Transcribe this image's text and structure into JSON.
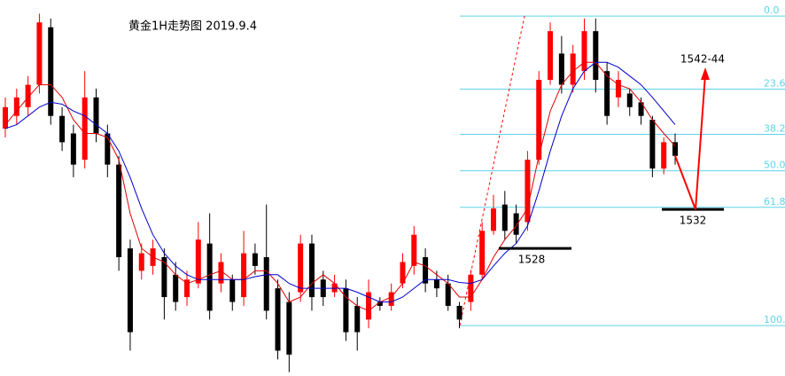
{
  "chart_data": {
    "type": "candlestick",
    "title": "黄金1H走势图 2019.9.4",
    "ylim": [
      1514.9,
      1553.5
    ],
    "open": [
      1540.3,
      1541.6,
      1542.5,
      1544.8,
      1550.7,
      1541.6,
      1539.8,
      1537.1,
      1543.5,
      1539.8,
      1536.6,
      1528.0,
      1525.7,
      1526.2,
      1527.1,
      1525.3,
      1523.0,
      1524.4,
      1528.5,
      1524.4,
      1524.8,
      1523.0,
      1527.5,
      1527.1,
      1523.9,
      1522.5,
      1523.5,
      1528.5,
      1524.8,
      1523.5,
      1523.9,
      1522.1,
      1520.7,
      1522.5,
      1522.1,
      1524.4,
      1526.2,
      1527.1,
      1524.8,
      1524.4,
      1522.1,
      1522.5,
      1525.3,
      1529.8,
      1532.5,
      1531.6,
      1530.7,
      1537.1,
      1545.3,
      1548.0,
      1544.8,
      1546.2,
      1550.3,
      1546.2,
      1543.5,
      1543.9,
      1543.0,
      1541.2,
      1536.2,
      1538.9
    ],
    "high": [
      1543.5,
      1544.4,
      1545.7,
      1552.1,
      1551.6,
      1542.5,
      1540.7,
      1546.2,
      1544.4,
      1540.7,
      1537.5,
      1528.9,
      1528.5,
      1528.9,
      1528.0,
      1526.6,
      1525.7,
      1530.7,
      1531.6,
      1527.5,
      1525.3,
      1529.8,
      1528.5,
      1532.5,
      1524.8,
      1523.5,
      1529.4,
      1529.4,
      1525.7,
      1525.3,
      1524.8,
      1523.0,
      1524.8,
      1523.0,
      1524.4,
      1527.5,
      1530.3,
      1528.0,
      1525.7,
      1525.3,
      1522.5,
      1525.8,
      1530.7,
      1533.5,
      1533.9,
      1532.5,
      1538.0,
      1546.2,
      1551.2,
      1549.8,
      1548.9,
      1551.6,
      1551.6,
      1547.1,
      1546.2,
      1544.4,
      1543.5,
      1541.6,
      1539.4,
      1539.8
    ],
    "low": [
      1539.4,
      1540.7,
      1541.6,
      1543.9,
      1540.7,
      1538.0,
      1535.3,
      1536.2,
      1538.9,
      1535.3,
      1525.7,
      1517.5,
      1524.8,
      1525.3,
      1520.7,
      1521.6,
      1522.1,
      1523.9,
      1520.7,
      1523.5,
      1521.6,
      1522.1,
      1525.3,
      1520.7,
      1516.6,
      1515.3,
      1522.5,
      1521.6,
      1522.1,
      1523.0,
      1518.5,
      1517.5,
      1519.8,
      1521.6,
      1521.6,
      1523.9,
      1525.3,
      1523.5,
      1523.0,
      1521.6,
      1519.8,
      1521.6,
      1524.8,
      1529.4,
      1528.9,
      1528.5,
      1529.8,
      1536.6,
      1544.8,
      1543.9,
      1544.0,
      1545.3,
      1544.0,
      1540.7,
      1542.5,
      1541.6,
      1540.7,
      1535.3,
      1535.6,
      1536.6
    ],
    "close": [
      1542.5,
      1543.5,
      1544.8,
      1551.2,
      1541.6,
      1538.9,
      1536.6,
      1543.5,
      1539.8,
      1536.6,
      1527.1,
      1519.4,
      1527.5,
      1528.0,
      1523.0,
      1522.5,
      1524.8,
      1528.9,
      1521.6,
      1526.6,
      1522.5,
      1527.5,
      1526.2,
      1521.6,
      1517.5,
      1517.1,
      1528.5,
      1523.0,
      1523.0,
      1524.4,
      1519.4,
      1519.4,
      1523.5,
      1522.1,
      1523.5,
      1526.6,
      1529.4,
      1524.4,
      1523.9,
      1522.1,
      1520.7,
      1525.3,
      1529.8,
      1532.1,
      1529.8,
      1529.4,
      1537.1,
      1545.3,
      1550.3,
      1544.8,
      1548.0,
      1550.3,
      1545.3,
      1541.6,
      1545.3,
      1542.5,
      1541.6,
      1536.2,
      1538.9,
      1537.5
    ],
    "up_color": "#ff0000",
    "down_color": "#000000",
    "lines": [
      {
        "color": "#e00000",
        "values": [
          1540.7,
          1542.1,
          1543.5,
          1544.8,
          1544.8,
          1543.5,
          1541.2,
          1539.8,
          1539.8,
          1539.4,
          1537.1,
          1531.6,
          1528.0,
          1527.1,
          1526.6,
          1525.3,
          1524.4,
          1524.8,
          1525.3,
          1525.7,
          1524.8,
          1524.8,
          1525.7,
          1525.7,
          1524.4,
          1522.5,
          1523.0,
          1524.4,
          1525.3,
          1524.4,
          1523.0,
          1522.1,
          1521.6,
          1522.5,
          1523.0,
          1524.4,
          1526.6,
          1526.2,
          1525.3,
          1524.4,
          1523.0,
          1523.0,
          1524.8,
          1527.1,
          1528.9,
          1530.3,
          1532.1,
          1537.5,
          1542.1,
          1544.8,
          1546.2,
          1547.1,
          1547.1,
          1545.7,
          1544.8,
          1544.4,
          1543.0,
          1541.2,
          1539.8,
          1538.5
        ]
      },
      {
        "color": "#0000cc",
        "values": [
          1540.3,
          1540.7,
          1541.6,
          1542.5,
          1543.0,
          1542.8,
          1542.1,
          1541.6,
          1540.7,
          1539.8,
          1538.0,
          1535.3,
          1532.1,
          1529.4,
          1527.5,
          1526.2,
          1525.3,
          1524.8,
          1524.8,
          1524.8,
          1524.8,
          1524.8,
          1525.1,
          1525.3,
          1525.3,
          1524.4,
          1523.9,
          1523.9,
          1523.9,
          1523.9,
          1523.9,
          1523.5,
          1523.0,
          1522.5,
          1522.5,
          1523.0,
          1523.9,
          1524.8,
          1524.8,
          1524.8,
          1524.5,
          1524.4,
          1524.8,
          1526.2,
          1527.5,
          1528.5,
          1530.3,
          1533.9,
          1538.0,
          1541.6,
          1544.4,
          1546.2,
          1547.1,
          1547.1,
          1546.6,
          1545.7,
          1544.8,
          1543.5,
          1542.1,
          1540.7
        ]
      }
    ],
    "y2lim": [
      116.3,
      -5.2
    ],
    "y2ticks": [
      {
        "value": 0,
        "label": "0.0"
      },
      23.6,
      38.2,
      {
        "value": 50,
        "label": "50.0"
      },
      61.8,
      {
        "value": 100,
        "label": "100.0"
      }
    ],
    "fib_color": "#5fd3e8",
    "support_levels": [
      1528,
      1532
    ],
    "target_label": "1542-44"
  }
}
